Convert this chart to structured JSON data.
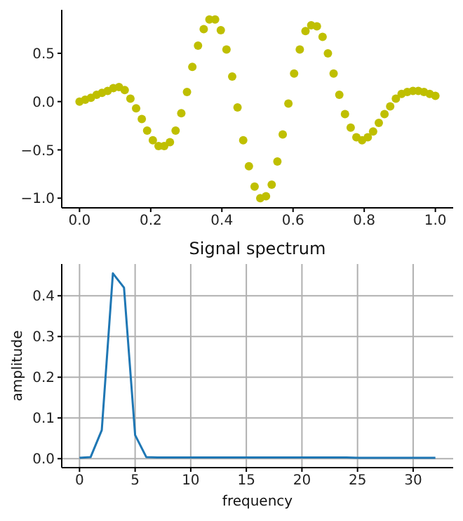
{
  "chart_data": [
    {
      "type": "scatter",
      "x": [
        0.0,
        0.016,
        0.032,
        0.048,
        0.063,
        0.079,
        0.095,
        0.111,
        0.127,
        0.143,
        0.159,
        0.175,
        0.19,
        0.206,
        0.222,
        0.238,
        0.254,
        0.27,
        0.286,
        0.302,
        0.317,
        0.333,
        0.349,
        0.365,
        0.381,
        0.397,
        0.413,
        0.429,
        0.444,
        0.46,
        0.476,
        0.492,
        0.508,
        0.524,
        0.54,
        0.556,
        0.571,
        0.587,
        0.603,
        0.619,
        0.635,
        0.651,
        0.667,
        0.683,
        0.698,
        0.714,
        0.73,
        0.746,
        0.762,
        0.778,
        0.794,
        0.81,
        0.825,
        0.841,
        0.857,
        0.873,
        0.889,
        0.905,
        0.921,
        0.937,
        0.952,
        0.968,
        0.984,
        1.0
      ],
      "series": [
        {
          "color": "#bfbf00",
          "values": [
            0.0,
            0.02,
            0.04,
            0.07,
            0.09,
            0.11,
            0.14,
            0.15,
            0.12,
            0.03,
            -0.07,
            -0.18,
            -0.3,
            -0.4,
            -0.46,
            -0.46,
            -0.42,
            -0.3,
            -0.12,
            0.1,
            0.36,
            0.58,
            0.75,
            0.85,
            0.85,
            0.74,
            0.54,
            0.26,
            -0.06,
            -0.4,
            -0.67,
            -0.88,
            -1.0,
            -0.98,
            -0.86,
            -0.62,
            -0.34,
            -0.02,
            0.29,
            0.54,
            0.73,
            0.79,
            0.78,
            0.67,
            0.5,
            0.29,
            0.07,
            -0.13,
            -0.27,
            -0.37,
            -0.4,
            -0.37,
            -0.31,
            -0.22,
            -0.13,
            -0.05,
            0.03,
            0.08,
            0.1,
            0.11,
            0.11,
            0.1,
            0.08,
            0.06
          ]
        }
      ],
      "xlim": [
        -0.05,
        1.05
      ],
      "xticks": [
        {
          "value": 0,
          "label": "0.0"
        },
        0.2,
        0.4,
        0.6,
        0.8,
        {
          "value": 1,
          "label": "1.0"
        }
      ],
      "ylim": [
        -1.1,
        0.95
      ],
      "yticks": [
        {
          "value": -1,
          "label": "−1.0"
        },
        {
          "value": -0.5,
          "label": "−0.5"
        },
        {
          "value": 0,
          "label": "0.0"
        },
        0.5
      ],
      "grid": false,
      "marker": "circle",
      "legend": false
    },
    {
      "type": "line",
      "title": "Signal spectrum",
      "xlabel": "frequency",
      "ylabel": "amplitude",
      "x": [
        0,
        1,
        2,
        3,
        4,
        5,
        6,
        7,
        8,
        9,
        10,
        11,
        12,
        13,
        14,
        15,
        16,
        17,
        18,
        19,
        20,
        21,
        22,
        23,
        24,
        25,
        26,
        27,
        28,
        29,
        30,
        31,
        32
      ],
      "series": [
        {
          "color": "#1f77b4",
          "values": [
            0.002,
            0.004,
            0.07,
            0.455,
            0.42,
            0.058,
            0.004,
            0.003,
            0.003,
            0.003,
            0.003,
            0.003,
            0.003,
            0.003,
            0.003,
            0.003,
            0.003,
            0.003,
            0.003,
            0.003,
            0.003,
            0.003,
            0.003,
            0.003,
            0.003,
            0.002,
            0.002,
            0.002,
            0.002,
            0.002,
            0.002,
            0.002,
            0.002
          ]
        }
      ],
      "xlim": [
        -1.6,
        33.6
      ],
      "xticks": [
        0,
        5,
        10,
        15,
        20,
        25,
        30
      ],
      "ylim": [
        -0.022,
        0.478
      ],
      "yticks": [
        {
          "value": 0,
          "label": "0.0"
        },
        0.1,
        0.2,
        0.3,
        0.4
      ],
      "grid": true,
      "marker": "none",
      "legend": false
    }
  ]
}
